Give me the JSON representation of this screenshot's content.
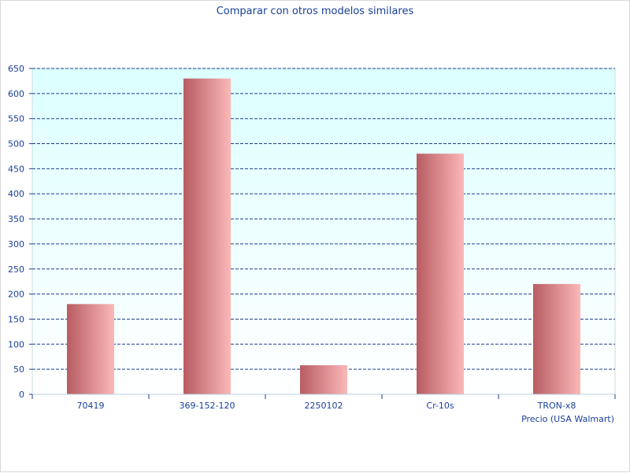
{
  "chart_data": {
    "type": "bar",
    "title": "Comparar con otros modelos similares",
    "xlabel": "Precio (USA Walmart)",
    "ylabel": "",
    "categories": [
      "70419",
      "369-152-120",
      "2250102",
      "Cr-10s",
      "TRON-x8"
    ],
    "values": [
      180,
      630,
      58,
      480,
      220
    ],
    "ylim": [
      0,
      650
    ],
    "yticks": [
      "0",
      "50",
      "100",
      "150",
      "200",
      "250",
      "300",
      "350",
      "400",
      "450",
      "500",
      "550",
      "600",
      "650"
    ],
    "grid": true,
    "colors": {
      "bar_dark": "#b85c62",
      "bar_light": "#fbb8b8",
      "plot_top": "#dcffff",
      "plot_bottom": "#ffffff",
      "grid": "#1f3f8f",
      "text": "#1a3f9a"
    }
  }
}
